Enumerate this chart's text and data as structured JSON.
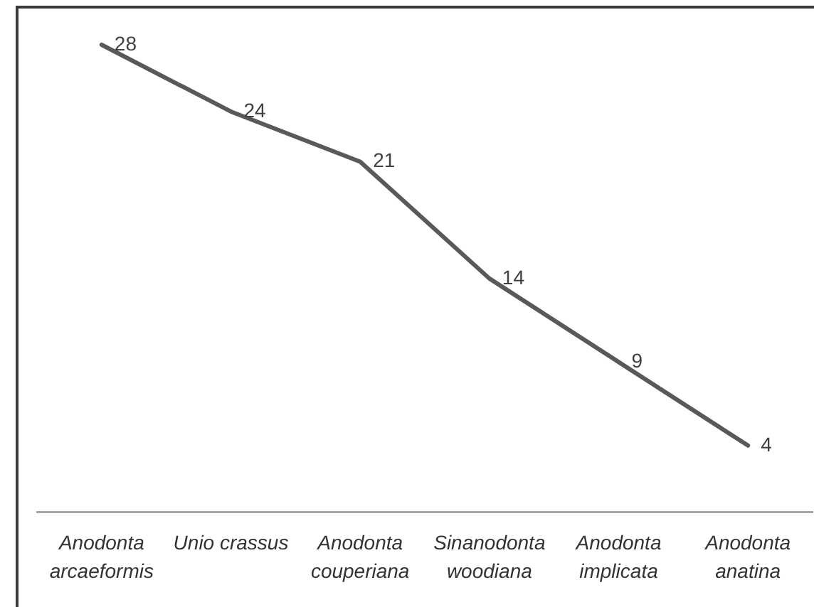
{
  "chart_data": {
    "type": "line",
    "categories": [
      "Anodonta arcaeformis",
      "Unio crassus",
      "Anodonta couperiana",
      "Sinanodonta woodiana",
      "Anodonta implicata",
      "Anodonta anatina"
    ],
    "values": [
      28,
      24,
      21,
      14,
      9,
      4
    ],
    "color": "#595959",
    "ylim": [
      0,
      30
    ],
    "tick_labels": "x",
    "data_labels": true,
    "grid": false,
    "legend": false,
    "marker": "none"
  }
}
